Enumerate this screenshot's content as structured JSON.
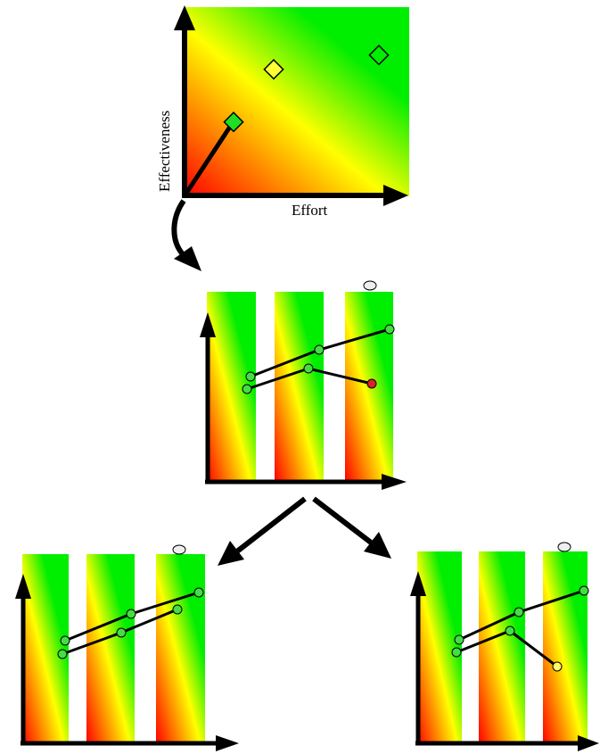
{
  "top_plot": {
    "x_axis_label": "Effort",
    "y_axis_label": "Effectiveness",
    "points": [
      {
        "label": "",
        "shape": "diamond",
        "fill": "#22dd22",
        "style": "filled"
      },
      {
        "label": "",
        "shape": "diamond",
        "fill": "#ffff33",
        "style": "filled"
      },
      {
        "label": "",
        "shape": "diamond",
        "fill": "none",
        "style": "outline"
      }
    ]
  },
  "colors": {
    "good": "#00ee00",
    "mid": "#ffff00",
    "bad": "#ff0000",
    "line": "#000000",
    "node_green": "#44dd44",
    "node_red": "#dd2222",
    "node_yellow": "#ffff66",
    "node_grey": "#eeeeee"
  },
  "panels": [
    {
      "id": "middle",
      "end_node_color": "red"
    },
    {
      "id": "bottom-left",
      "end_node_color": "green"
    },
    {
      "id": "bottom-right",
      "end_node_color": "yellow"
    }
  ]
}
